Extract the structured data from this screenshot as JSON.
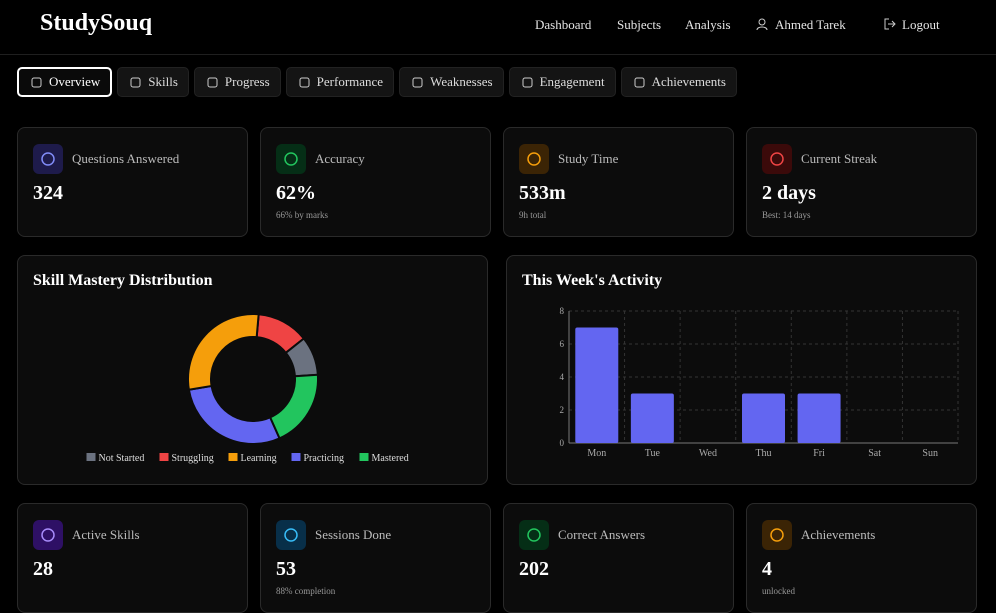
{
  "header": {
    "brand": "StudySouq",
    "nav": [
      "Dashboard",
      "Subjects",
      "Analysis"
    ],
    "user": "Ahmed Tarek",
    "logout": "Logout"
  },
  "tabs": [
    "Overview",
    "Skills",
    "Progress",
    "Performance",
    "Weaknesses",
    "Engagement",
    "Achievements"
  ],
  "stats": [
    {
      "label": "Questions Answered",
      "value": "324"
    },
    {
      "label": "Accuracy",
      "value": "62%",
      "sub": "66% by marks"
    },
    {
      "label": "Study Time",
      "value": "533m",
      "sub": "9h total"
    },
    {
      "label": "Current Streak",
      "value": "2 days",
      "sub": "Best: 14 days"
    }
  ],
  "bottom_stats": [
    {
      "label": "Active Skills",
      "value": "28"
    },
    {
      "label": "Sessions Done",
      "value": "53",
      "sub": "88% completion"
    },
    {
      "label": "Correct Answers",
      "value": "202"
    },
    {
      "label": "Achievements",
      "value": "4",
      "sub": "unlocked"
    }
  ],
  "chart_data": [
    {
      "type": "pie",
      "donut": true,
      "title": "Skill Mastery Distribution",
      "categories": [
        "Not Started",
        "Struggling",
        "Learning",
        "Practicing",
        "Mastered"
      ],
      "values": [
        3,
        4,
        9,
        9,
        6
      ],
      "colors": [
        "#6b7280",
        "#ef4444",
        "#f59e0b",
        "#6366f1",
        "#22c55e"
      ]
    },
    {
      "type": "bar",
      "title": "This Week's Activity",
      "categories": [
        "Mon",
        "Tue",
        "Wed",
        "Thu",
        "Fri",
        "Sat",
        "Sun"
      ],
      "values": [
        7,
        3,
        0,
        3,
        3,
        0,
        0
      ],
      "color": "#6366f1",
      "ylim": [
        0,
        8
      ],
      "yticks": [
        0,
        2,
        4,
        6,
        8
      ],
      "grid": true
    }
  ]
}
